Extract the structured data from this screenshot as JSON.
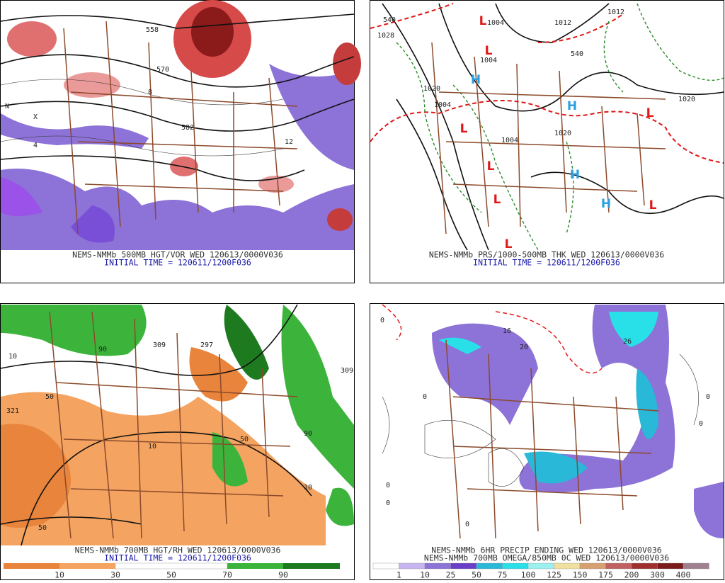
{
  "panels": [
    {
      "caption": [
        "NEMS-NMMb 500MB HGT/VOR WED 120613/0000V036"
      ],
      "initial_time": "INITIAL TIME = 120611/1200F036",
      "labels": [
        "558",
        "570",
        "582",
        "8",
        "4",
        "N",
        "X",
        "12"
      ]
    },
    {
      "caption": [
        "NEMS-NMMb PRS/1000-500MB THK WED 120613/0000V036"
      ],
      "initial_time": "INITIAL TIME = 120611/1200F036",
      "labels": [
        "540",
        "1004",
        "1012",
        "1028",
        "1020",
        "1020",
        "1004",
        "1004",
        "1020",
        "1012",
        "1004",
        "540"
      ],
      "centers": [
        "L",
        "L",
        "L",
        "L",
        "L",
        "L",
        "L",
        "L",
        "H",
        "H",
        "H",
        "H"
      ]
    },
    {
      "caption": [
        "NEMS-NMMb 700MB HGT/RH WED 120613/0000V036"
      ],
      "initial_time": "INITIAL TIME = 120611/1200F036",
      "labels": [
        "321",
        "10",
        "50",
        "90",
        "309",
        "297",
        "10",
        "90",
        "50",
        "10",
        "50",
        "309"
      ],
      "colorbar": [
        "10",
        "30",
        "50",
        "70",
        "90"
      ]
    },
    {
      "caption": [
        "NEMS-NMMb 6HR PRECIP ENDING WED 120613/0000V036",
        "NEMS-NMMb 700MB OMEGA/850MB 0C WED 120613/0000V036"
      ],
      "labels": [
        "0",
        "0",
        "0",
        "0",
        "0",
        "16",
        "20",
        "26",
        "0",
        "0"
      ],
      "colorbar": [
        "1",
        "10",
        "25",
        "50",
        "75",
        "100",
        "125",
        "150",
        "175",
        "200",
        "300",
        "400"
      ]
    }
  ]
}
